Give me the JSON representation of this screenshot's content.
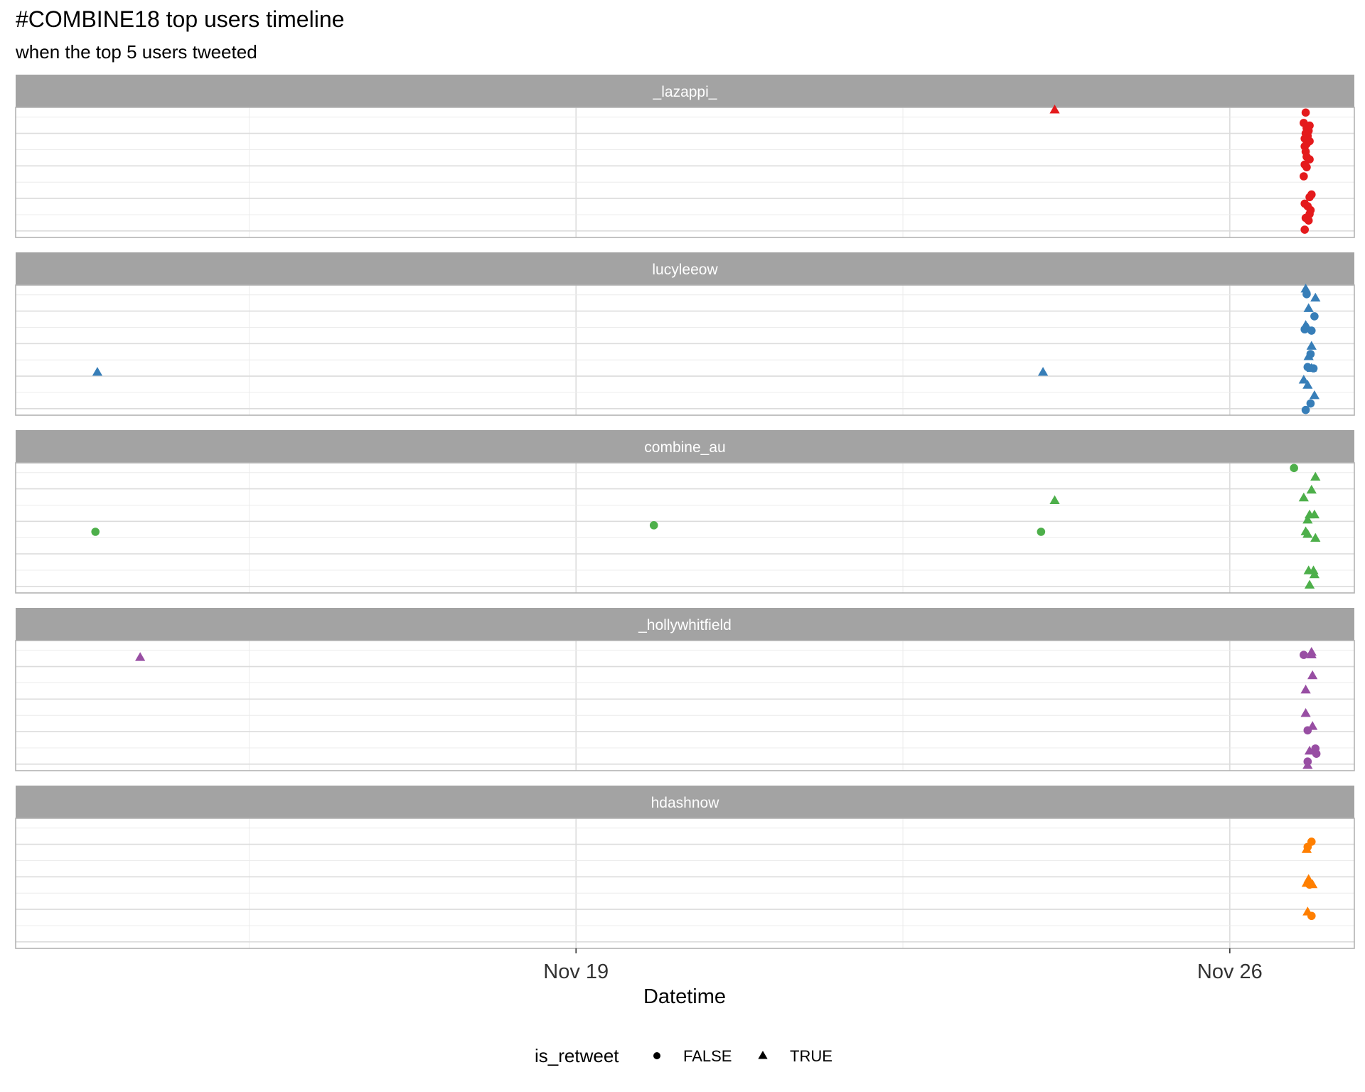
{
  "chart_data": {
    "type": "scatter",
    "title": "#COMBINE18 top users timeline",
    "subtitle": "when the top 5 users tweeted",
    "xlabel": "Datetime",
    "x_axis": {
      "type": "date",
      "range": [
        "2018-11-13T00:00",
        "2018-11-27T08:00"
      ],
      "ticks": [
        {
          "value": "2018-11-19T00:00",
          "label": "Nov 19"
        },
        {
          "value": "2018-11-26T00:00",
          "label": "Nov 26"
        }
      ]
    },
    "y_axis": {
      "range": [
        0,
        1
      ],
      "note": "vertical jitter only"
    },
    "grid": true,
    "facets": [
      "_lazappi_",
      "lucyleeow",
      "combine_au",
      "_hollywhitfield",
      "hdashnow"
    ],
    "colors": {
      "_lazappi_": "#e41a1c",
      "lucyleeow": "#377eb8",
      "combine_au": "#4daf4a",
      "_hollywhitfield": "#984ea3",
      "hdashnow": "#ff7f00"
    },
    "legend": {
      "title": "is_retweet",
      "position": "bottom",
      "entries": [
        {
          "label": "FALSE",
          "shape": "circle"
        },
        {
          "label": "TRUE",
          "shape": "triangle"
        }
      ]
    },
    "series": [
      {
        "facet": "_lazappi_",
        "points": [
          {
            "x": "2018-11-24T03:00",
            "y": 0.98,
            "is_retweet": true
          },
          {
            "x": "2018-11-26T19:30",
            "y": 0.96,
            "is_retweet": false
          },
          {
            "x": "2018-11-26T19:00",
            "y": 0.88,
            "is_retweet": false
          },
          {
            "x": "2018-11-26T20:30",
            "y": 0.86,
            "is_retweet": false
          },
          {
            "x": "2018-11-26T19:45",
            "y": 0.84,
            "is_retweet": false
          },
          {
            "x": "2018-11-26T20:15",
            "y": 0.82,
            "is_retweet": false
          },
          {
            "x": "2018-11-26T19:30",
            "y": 0.8,
            "is_retweet": false
          },
          {
            "x": "2018-11-26T20:00",
            "y": 0.78,
            "is_retweet": false
          },
          {
            "x": "2018-11-26T19:15",
            "y": 0.76,
            "is_retweet": false
          },
          {
            "x": "2018-11-26T20:30",
            "y": 0.74,
            "is_retweet": false
          },
          {
            "x": "2018-11-26T19:45",
            "y": 0.72,
            "is_retweet": false
          },
          {
            "x": "2018-11-26T19:15",
            "y": 0.7,
            "is_retweet": false
          },
          {
            "x": "2018-11-26T19:30",
            "y": 0.66,
            "is_retweet": false
          },
          {
            "x": "2018-11-26T19:45",
            "y": 0.62,
            "is_retweet": false
          },
          {
            "x": "2018-11-26T20:30",
            "y": 0.6,
            "is_retweet": false
          },
          {
            "x": "2018-11-26T19:15",
            "y": 0.56,
            "is_retweet": false
          },
          {
            "x": "2018-11-26T19:45",
            "y": 0.54,
            "is_retweet": false
          },
          {
            "x": "2018-11-26T19:00",
            "y": 0.47,
            "is_retweet": false
          },
          {
            "x": "2018-11-26T21:00",
            "y": 0.33,
            "is_retweet": false
          },
          {
            "x": "2018-11-26T20:30",
            "y": 0.31,
            "is_retweet": false
          },
          {
            "x": "2018-11-26T19:15",
            "y": 0.26,
            "is_retweet": false
          },
          {
            "x": "2018-11-26T20:00",
            "y": 0.24,
            "is_retweet": false
          },
          {
            "x": "2018-11-26T20:45",
            "y": 0.21,
            "is_retweet": false
          },
          {
            "x": "2018-11-26T20:30",
            "y": 0.18,
            "is_retweet": false
          },
          {
            "x": "2018-11-26T19:30",
            "y": 0.15,
            "is_retweet": false
          },
          {
            "x": "2018-11-26T20:15",
            "y": 0.13,
            "is_retweet": false
          },
          {
            "x": "2018-11-26T19:15",
            "y": 0.06,
            "is_retweet": false
          }
        ]
      },
      {
        "facet": "lucyleeow",
        "points": [
          {
            "x": "2018-11-13T21:00",
            "y": 0.33,
            "is_retweet": true
          },
          {
            "x": "2018-11-24T00:00",
            "y": 0.33,
            "is_retweet": true
          },
          {
            "x": "2018-11-26T19:30",
            "y": 0.97,
            "is_retweet": true
          },
          {
            "x": "2018-11-26T19:45",
            "y": 0.93,
            "is_retweet": false
          },
          {
            "x": "2018-11-26T22:00",
            "y": 0.9,
            "is_retweet": true
          },
          {
            "x": "2018-11-26T20:15",
            "y": 0.82,
            "is_retweet": true
          },
          {
            "x": "2018-11-26T21:45",
            "y": 0.76,
            "is_retweet": false
          },
          {
            "x": "2018-11-26T19:30",
            "y": 0.69,
            "is_retweet": true
          },
          {
            "x": "2018-11-26T20:00",
            "y": 0.67,
            "is_retweet": true
          },
          {
            "x": "2018-11-26T19:15",
            "y": 0.66,
            "is_retweet": false
          },
          {
            "x": "2018-11-26T21:00",
            "y": 0.65,
            "is_retweet": false
          },
          {
            "x": "2018-11-26T21:00",
            "y": 0.53,
            "is_retweet": true
          },
          {
            "x": "2018-11-26T20:45",
            "y": 0.47,
            "is_retweet": false
          },
          {
            "x": "2018-11-26T20:15",
            "y": 0.45,
            "is_retweet": true
          },
          {
            "x": "2018-11-26T20:00",
            "y": 0.37,
            "is_retweet": false
          },
          {
            "x": "2018-11-26T21:00",
            "y": 0.36,
            "is_retweet": true
          },
          {
            "x": "2018-11-26T21:30",
            "y": 0.36,
            "is_retweet": false
          },
          {
            "x": "2018-11-26T19:00",
            "y": 0.27,
            "is_retweet": true
          },
          {
            "x": "2018-11-26T20:00",
            "y": 0.23,
            "is_retweet": true
          },
          {
            "x": "2018-11-26T21:45",
            "y": 0.15,
            "is_retweet": true
          },
          {
            "x": "2018-11-26T20:45",
            "y": 0.09,
            "is_retweet": false
          },
          {
            "x": "2018-11-26T19:30",
            "y": 0.04,
            "is_retweet": false
          }
        ]
      },
      {
        "facet": "combine_au",
        "points": [
          {
            "x": "2018-11-13T20:30",
            "y": 0.47,
            "is_retweet": false
          },
          {
            "x": "2018-11-19T20:00",
            "y": 0.52,
            "is_retweet": false
          },
          {
            "x": "2018-11-23T23:30",
            "y": 0.47,
            "is_retweet": false
          },
          {
            "x": "2018-11-24T03:00",
            "y": 0.71,
            "is_retweet": true
          },
          {
            "x": "2018-11-26T16:30",
            "y": 0.96,
            "is_retweet": false
          },
          {
            "x": "2018-11-26T22:00",
            "y": 0.89,
            "is_retweet": true
          },
          {
            "x": "2018-11-27T19:00",
            "y": 0.81,
            "is_retweet": true
          },
          {
            "x": "2018-11-26T21:00",
            "y": 0.79,
            "is_retweet": true
          },
          {
            "x": "2018-11-26T19:00",
            "y": 0.73,
            "is_retweet": true
          },
          {
            "x": "2018-11-26T20:30",
            "y": 0.6,
            "is_retweet": true
          },
          {
            "x": "2018-11-26T21:45",
            "y": 0.6,
            "is_retweet": true
          },
          {
            "x": "2018-11-26T20:00",
            "y": 0.56,
            "is_retweet": true
          },
          {
            "x": "2018-11-26T19:30",
            "y": 0.47,
            "is_retweet": true
          },
          {
            "x": "2018-11-26T20:00",
            "y": 0.45,
            "is_retweet": true
          },
          {
            "x": "2018-11-26T22:00",
            "y": 0.42,
            "is_retweet": true
          },
          {
            "x": "2018-11-26T20:15",
            "y": 0.17,
            "is_retweet": true
          },
          {
            "x": "2018-11-26T21:30",
            "y": 0.17,
            "is_retweet": true
          },
          {
            "x": "2018-11-26T21:45",
            "y": 0.14,
            "is_retweet": true
          },
          {
            "x": "2018-11-26T20:30",
            "y": 0.06,
            "is_retweet": true
          }
        ]
      },
      {
        "facet": "_hollywhitfield",
        "points": [
          {
            "x": "2018-11-14T08:00",
            "y": 0.87,
            "is_retweet": true
          },
          {
            "x": "2018-11-26T19:00",
            "y": 0.89,
            "is_retweet": false
          },
          {
            "x": "2018-11-26T21:00",
            "y": 0.91,
            "is_retweet": true
          },
          {
            "x": "2018-11-26T21:00",
            "y": 0.89,
            "is_retweet": true
          },
          {
            "x": "2018-11-26T21:15",
            "y": 0.73,
            "is_retweet": true
          },
          {
            "x": "2018-11-26T19:30",
            "y": 0.62,
            "is_retweet": true
          },
          {
            "x": "2018-11-26T19:30",
            "y": 0.44,
            "is_retweet": true
          },
          {
            "x": "2018-11-26T21:15",
            "y": 0.34,
            "is_retweet": true
          },
          {
            "x": "2018-11-26T20:00",
            "y": 0.31,
            "is_retweet": false
          },
          {
            "x": "2018-11-26T20:30",
            "y": 0.15,
            "is_retweet": true
          },
          {
            "x": "2018-11-26T22:00",
            "y": 0.17,
            "is_retweet": false
          },
          {
            "x": "2018-11-26T22:15",
            "y": 0.13,
            "is_retweet": false
          },
          {
            "x": "2018-11-26T20:00",
            "y": 0.07,
            "is_retweet": false
          },
          {
            "x": "2018-11-26T20:00",
            "y": 0.04,
            "is_retweet": true
          }
        ]
      },
      {
        "facet": "hdashnow",
        "points": [
          {
            "x": "2018-11-26T21:00",
            "y": 0.82,
            "is_retweet": false
          },
          {
            "x": "2018-11-26T20:00",
            "y": 0.78,
            "is_retweet": false
          },
          {
            "x": "2018-11-26T19:45",
            "y": 0.76,
            "is_retweet": true
          },
          {
            "x": "2018-11-26T20:15",
            "y": 0.53,
            "is_retweet": true
          },
          {
            "x": "2018-11-26T19:45",
            "y": 0.5,
            "is_retweet": true
          },
          {
            "x": "2018-11-26T20:30",
            "y": 0.49,
            "is_retweet": false
          },
          {
            "x": "2018-11-26T21:15",
            "y": 0.49,
            "is_retweet": true
          },
          {
            "x": "2018-11-26T20:00",
            "y": 0.28,
            "is_retweet": true
          },
          {
            "x": "2018-11-26T21:00",
            "y": 0.25,
            "is_retweet": false
          }
        ]
      }
    ]
  }
}
